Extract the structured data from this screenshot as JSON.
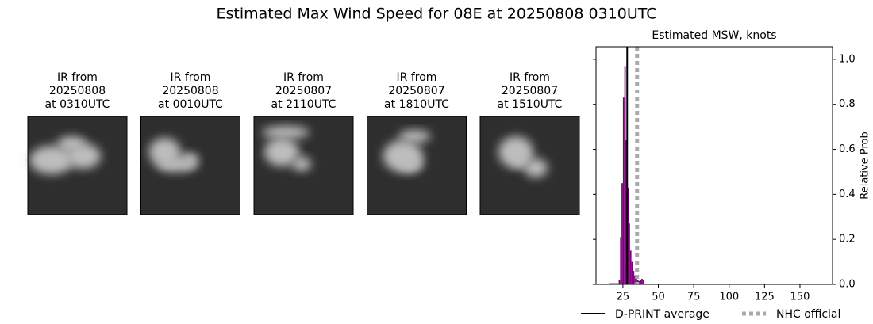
{
  "title": "Estimated Max Wind Speed for 08E at 20250808 0310UTC",
  "panels": [
    {
      "lines": [
        "IR from",
        "20250808",
        "at 0310UTC"
      ]
    },
    {
      "lines": [
        "IR from",
        "20250808",
        "at 0010UTC"
      ]
    },
    {
      "lines": [
        "IR from",
        "20250807",
        "at 2110UTC"
      ]
    },
    {
      "lines": [
        "IR from",
        "20250807",
        "at 1810UTC"
      ]
    },
    {
      "lines": [
        "IR from",
        "20250807",
        "at 1510UTC"
      ]
    }
  ],
  "chart_data": {
    "type": "histogram",
    "title": "Estimated MSW, knots",
    "y_label": "Relative Prob",
    "bins": [
      15,
      22,
      23,
      24,
      25,
      26,
      27,
      28,
      29,
      30,
      31,
      32,
      33,
      34,
      35,
      36,
      37,
      38,
      39,
      40
    ],
    "values": [
      0.005,
      0.02,
      0.21,
      0.45,
      0.83,
      0.97,
      0.64,
      0.43,
      0.27,
      0.15,
      0.1,
      0.06,
      0.04,
      0.03,
      0.02,
      0.015,
      0.02,
      0.025,
      0.02
    ],
    "color": "#800080",
    "xlim": [
      6,
      173
    ],
    "xticks": [
      25,
      50,
      75,
      100,
      125,
      150
    ],
    "ylim": [
      0,
      1.056
    ],
    "yticks": [
      {
        "value": 0,
        "label": "0.0"
      },
      {
        "value": 0.2,
        "label": "0.2"
      },
      {
        "value": 0.4,
        "label": "0.4"
      },
      {
        "value": 0.6,
        "label": "0.6"
      },
      {
        "value": 0.8,
        "label": "0.8"
      },
      {
        "value": 1,
        "label": "1.0"
      }
    ],
    "lines": [
      {
        "name": "D-PRINT average",
        "value": 28,
        "color": "#000000",
        "dashed": false
      },
      {
        "name": "NHC official",
        "value": 35,
        "color": "#aaaaaa",
        "dashed": true
      }
    ],
    "legend": "bottom"
  }
}
